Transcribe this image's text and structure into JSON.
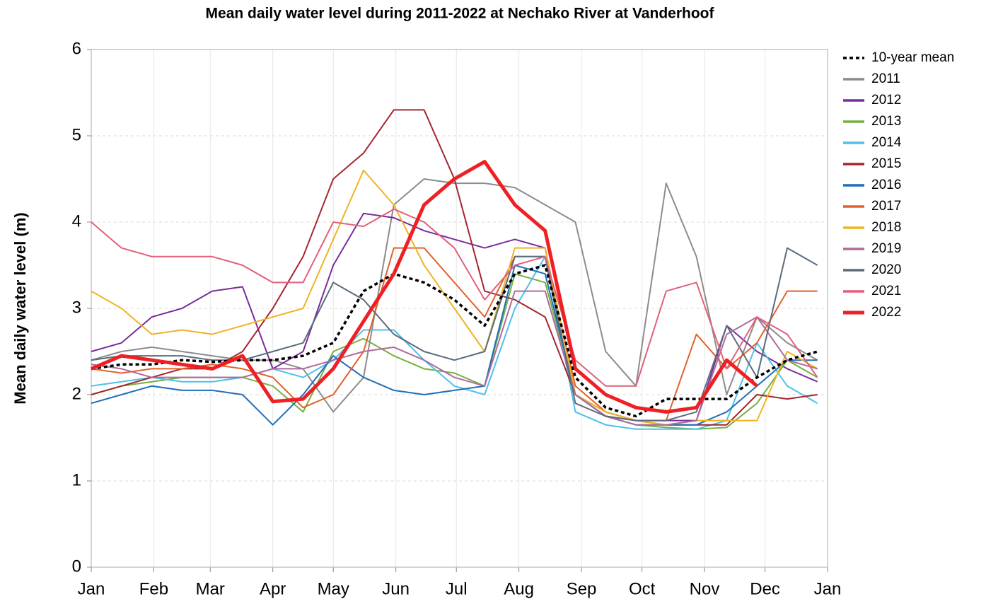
{
  "chart_data": {
    "type": "line",
    "title": "Mean daily water level during 2011-2022 at Nechako River at Vanderhoof",
    "y_label": "Mean daily water level (m)",
    "x": [
      0,
      15,
      30,
      45,
      60,
      75,
      90,
      105,
      120,
      135,
      150,
      165,
      180,
      195,
      210,
      225,
      240,
      255,
      270,
      285,
      300,
      315,
      330,
      345,
      360
    ],
    "xlim": [
      0,
      365
    ],
    "xticks": [
      {
        "value": 0,
        "label": "Jan"
      },
      {
        "value": 31,
        "label": "Feb"
      },
      {
        "value": 59,
        "label": "Mar"
      },
      {
        "value": 90,
        "label": "Apr"
      },
      {
        "value": 120,
        "label": "May"
      },
      {
        "value": 151,
        "label": "Jun"
      },
      {
        "value": 181,
        "label": "Jul"
      },
      {
        "value": 212,
        "label": "Aug"
      },
      {
        "value": 243,
        "label": "Sep"
      },
      {
        "value": 273,
        "label": "Oct"
      },
      {
        "value": 304,
        "label": "Nov"
      },
      {
        "value": 334,
        "label": "Dec"
      },
      {
        "value": 365,
        "label": "Jan"
      }
    ],
    "ylim": [
      0,
      6
    ],
    "yticks": [
      0,
      1,
      2,
      3,
      4,
      5,
      6
    ],
    "grid": true,
    "legend": "right",
    "series": [
      {
        "name": "10-year mean",
        "color": "#000000",
        "dash": true,
        "values": [
          2.3,
          2.35,
          2.35,
          2.4,
          2.38,
          2.4,
          2.4,
          2.45,
          2.6,
          3.2,
          3.4,
          3.3,
          3.1,
          2.8,
          3.4,
          3.5,
          2.2,
          1.85,
          1.75,
          1.95,
          1.95,
          1.95,
          2.2,
          2.4,
          2.5
        ]
      },
      {
        "name": "2011",
        "color": "#8c8c8c",
        "values": [
          2.4,
          2.5,
          2.55,
          2.5,
          2.45,
          2.4,
          2.4,
          2.3,
          1.8,
          2.2,
          4.2,
          4.5,
          4.45,
          4.45,
          4.4,
          4.2,
          4.0,
          2.5,
          2.1,
          4.45,
          3.6,
          2.0,
          2.9,
          2.6,
          2.4
        ]
      },
      {
        "name": "2012",
        "color": "#7b2d9b",
        "values": [
          2.5,
          2.6,
          2.9,
          3.0,
          3.2,
          3.25,
          2.3,
          2.5,
          3.5,
          4.1,
          4.05,
          3.9,
          3.8,
          3.7,
          3.8,
          3.7,
          2.0,
          1.8,
          1.7,
          1.7,
          1.7,
          2.8,
          2.5,
          2.3,
          2.15
        ]
      },
      {
        "name": "2013",
        "color": "#77b041",
        "values": [
          2.0,
          2.1,
          2.15,
          2.2,
          2.2,
          2.2,
          2.1,
          1.8,
          2.5,
          2.65,
          2.45,
          2.3,
          2.25,
          2.1,
          3.4,
          3.3,
          2.0,
          1.75,
          1.65,
          1.62,
          1.6,
          1.62,
          1.9,
          2.4,
          2.2
        ]
      },
      {
        "name": "2014",
        "color": "#4fc0ea",
        "values": [
          2.1,
          2.15,
          2.2,
          2.15,
          2.15,
          2.2,
          2.3,
          2.2,
          2.4,
          2.75,
          2.75,
          2.4,
          2.1,
          2.0,
          3.0,
          3.6,
          1.8,
          1.65,
          1.6,
          1.6,
          1.6,
          1.7,
          2.6,
          2.1,
          1.9
        ]
      },
      {
        "name": "2015",
        "color": "#a3262f",
        "values": [
          2.0,
          2.1,
          2.2,
          2.3,
          2.3,
          2.5,
          3.0,
          3.6,
          4.5,
          4.8,
          5.3,
          5.3,
          4.5,
          3.2,
          3.1,
          2.9,
          2.0,
          1.75,
          1.7,
          1.65,
          1.65,
          1.65,
          2.0,
          1.95,
          2.0
        ]
      },
      {
        "name": "2016",
        "color": "#1f6fb8",
        "values": [
          1.9,
          2.0,
          2.1,
          2.05,
          2.05,
          2.0,
          1.65,
          2.0,
          2.45,
          2.2,
          2.05,
          2.0,
          2.05,
          2.1,
          3.5,
          3.4,
          2.0,
          1.75,
          1.65,
          1.65,
          1.65,
          1.8,
          2.1,
          2.4,
          2.4
        ]
      },
      {
        "name": "2017",
        "color": "#e0622a",
        "values": [
          2.3,
          2.25,
          2.3,
          2.3,
          2.35,
          2.3,
          2.2,
          1.85,
          2.0,
          2.5,
          3.7,
          3.7,
          3.3,
          2.9,
          3.6,
          3.6,
          2.1,
          1.8,
          1.7,
          1.7,
          2.7,
          2.3,
          2.6,
          3.2,
          3.2
        ]
      },
      {
        "name": "2018",
        "color": "#f0b323",
        "values": [
          3.2,
          3.0,
          2.7,
          2.75,
          2.7,
          2.8,
          2.9,
          3.0,
          3.8,
          4.6,
          4.2,
          3.5,
          3.0,
          2.5,
          3.7,
          3.7,
          2.0,
          1.8,
          1.7,
          1.65,
          1.7,
          1.7,
          1.7,
          2.5,
          2.3
        ]
      },
      {
        "name": "2019",
        "color": "#b06a9c",
        "values": [
          2.35,
          2.3,
          2.2,
          2.2,
          2.2,
          2.2,
          2.3,
          2.3,
          2.4,
          2.5,
          2.55,
          2.4,
          2.2,
          2.1,
          3.2,
          3.2,
          2.0,
          1.75,
          1.65,
          1.65,
          1.7,
          2.7,
          2.9,
          2.4,
          2.3
        ]
      },
      {
        "name": "2020",
        "color": "#5b6b7c",
        "values": [
          2.4,
          2.45,
          2.45,
          2.45,
          2.4,
          2.4,
          2.5,
          2.6,
          3.3,
          3.1,
          2.7,
          2.5,
          2.4,
          2.5,
          3.6,
          3.6,
          1.9,
          1.75,
          1.7,
          1.7,
          1.8,
          2.8,
          2.2,
          3.7,
          3.5
        ]
      },
      {
        "name": "2021",
        "color": "#e2607a",
        "values": [
          4.0,
          3.7,
          3.6,
          3.6,
          3.6,
          3.5,
          3.3,
          3.3,
          4.0,
          3.95,
          4.15,
          4.0,
          3.7,
          3.1,
          3.5,
          3.6,
          2.4,
          2.1,
          2.1,
          3.2,
          3.3,
          2.3,
          2.9,
          2.7,
          2.2
        ]
      },
      {
        "name": "2022",
        "color": "#ee2024",
        "thick": true,
        "values": [
          2.3,
          2.45,
          2.4,
          2.35,
          2.3,
          2.45,
          1.92,
          1.95,
          2.3,
          2.85,
          3.4,
          4.2,
          4.5,
          4.7,
          4.2,
          3.9,
          2.3,
          2.0,
          1.85,
          1.8,
          1.85,
          2.4,
          2.1,
          null,
          null
        ]
      }
    ]
  }
}
